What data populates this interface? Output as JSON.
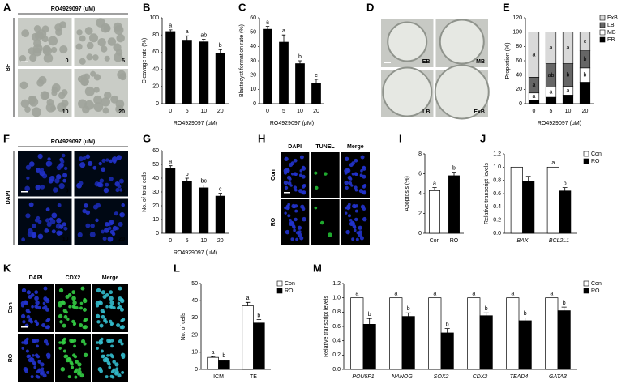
{
  "chart_data": [
    {
      "type": "bar",
      "panel": "B",
      "ylabel": "Cleavage rate (%)",
      "xlabel": "RO4929097 (μM)",
      "categories": [
        "0",
        "5",
        "10",
        "20"
      ],
      "values": [
        84,
        74,
        72,
        59
      ],
      "errors": [
        2,
        5,
        3,
        4
      ],
      "letters": [
        "a",
        "a",
        "ab",
        "b"
      ],
      "color": "#000000",
      "ylim": [
        0,
        100
      ],
      "yticks": [
        0,
        20,
        40,
        60,
        80,
        100
      ]
    },
    {
      "type": "bar",
      "panel": "C",
      "ylabel": "Blastocyst formation rate (%)",
      "xlabel": "RO4929097 (μM)",
      "categories": [
        "0",
        "5",
        "10",
        "20"
      ],
      "values": [
        52,
        43,
        28,
        14
      ],
      "errors": [
        2,
        5,
        2,
        3
      ],
      "letters": [
        "a",
        "a",
        "b",
        "c"
      ],
      "color": "#000000",
      "ylim": [
        0,
        60
      ],
      "yticks": [
        0,
        10,
        20,
        30,
        40,
        50,
        60
      ]
    },
    {
      "type": "stacked_bar",
      "panel": "E",
      "ylabel": "Proportion (%)",
      "xlabel": "RO4929097 (μM)",
      "categories": [
        "0",
        "5",
        "10",
        "20"
      ],
      "ylim": [
        0,
        120
      ],
      "yticks": [
        0,
        20,
        40,
        60,
        80,
        100,
        120
      ],
      "legend": "right",
      "series": [
        {
          "name": "EB",
          "color": "#000000",
          "values": [
            5,
            9,
            12,
            30
          ]
        },
        {
          "name": "MB",
          "color": "#ffffff",
          "values": [
            10,
            14,
            12,
            20
          ],
          "letters": [
            "a",
            "a",
            "a",
            "b"
          ]
        },
        {
          "name": "LB",
          "color": "#666666",
          "values": [
            22,
            33,
            32,
            24
          ],
          "letters": [
            "a",
            "ab",
            "b",
            "b"
          ]
        },
        {
          "name": "ExB",
          "color": "#d9d9d9",
          "values": [
            63,
            44,
            44,
            26
          ],
          "letters": [
            "a",
            "a",
            "a",
            "c"
          ]
        }
      ]
    },
    {
      "type": "bar",
      "panel": "G",
      "ylabel": "No. of total cells",
      "xlabel": "RO4929097 (μM)",
      "categories": [
        "0",
        "5",
        "10",
        "20"
      ],
      "values": [
        47,
        38,
        33,
        27
      ],
      "errors": [
        2,
        2,
        2,
        2
      ],
      "letters": [
        "a",
        "b",
        "bc",
        "c"
      ],
      "color": "#000000",
      "ylim": [
        0,
        60
      ],
      "yticks": [
        0,
        10,
        20,
        30,
        40,
        50,
        60
      ]
    },
    {
      "type": "bar",
      "panel": "I",
      "ylabel": "Apoptosis (%)",
      "categories": [
        "Con",
        "RO"
      ],
      "values": [
        4.3,
        5.8
      ],
      "errors": [
        0.3,
        0.35
      ],
      "letters": [
        "a",
        "b"
      ],
      "colors": [
        "#ffffff",
        "#000000"
      ],
      "ylim": [
        0,
        8
      ],
      "yticks": [
        0,
        2,
        4,
        6,
        8
      ]
    },
    {
      "type": "grouped_bar",
      "panel": "J",
      "ylabel": "Relative transcript levels",
      "categories": [
        "BAX",
        "BCL2L1"
      ],
      "italic_categories": true,
      "legend": "right",
      "ylim": [
        0,
        1.2
      ],
      "yticks": [
        {
          "value": 0,
          "label": "0.0"
        },
        0.2,
        0.4,
        0.6,
        0.8,
        {
          "value": 1,
          "label": "1.0"
        },
        1.2
      ],
      "series": [
        {
          "name": "Con",
          "color": "#ffffff",
          "values": [
            1,
            1
          ],
          "letters": [
            null,
            "a"
          ]
        },
        {
          "name": "RO",
          "color": "#000000",
          "values": [
            0.78,
            0.64
          ],
          "errors": [
            0.08,
            0.05
          ],
          "letters": [
            null,
            "b"
          ]
        }
      ]
    },
    {
      "type": "grouped_bar",
      "panel": "L",
      "ylabel": "No. of cells",
      "categories": [
        "ICM",
        "TE"
      ],
      "legend": "right",
      "ylim": [
        0,
        50
      ],
      "yticks": [
        0,
        10,
        20,
        30,
        40,
        50
      ],
      "series": [
        {
          "name": "Con",
          "color": "#ffffff",
          "values": [
            7,
            37
          ],
          "errors": [
            0.5,
            2
          ],
          "letters": [
            "a",
            "a"
          ]
        },
        {
          "name": "RO",
          "color": "#000000",
          "values": [
            5,
            27
          ],
          "errors": [
            0.5,
            2
          ],
          "letters": [
            "b",
            "b"
          ]
        }
      ]
    },
    {
      "type": "grouped_bar",
      "panel": "M",
      "ylabel": "Relative transcript levels",
      "categories": [
        "POU5F1",
        "NANOG",
        "SOX2",
        "CDX2",
        "TEAD4",
        "GATA3"
      ],
      "italic_categories": true,
      "legend": "right",
      "ylim": [
        0,
        1.2
      ],
      "yticks": [
        {
          "value": 0,
          "label": "0.0"
        },
        0.2,
        0.4,
        0.6,
        0.8,
        {
          "value": 1,
          "label": "1.0"
        },
        1.2
      ],
      "series": [
        {
          "name": "Con",
          "color": "#ffffff",
          "values": [
            1,
            1,
            1,
            1,
            1,
            1
          ],
          "letters": [
            "a",
            "a",
            "a",
            "a",
            "a",
            "a"
          ]
        },
        {
          "name": "RO",
          "color": "#000000",
          "values": [
            0.63,
            0.74,
            0.51,
            0.75,
            0.68,
            0.82
          ],
          "errors": [
            0.08,
            0.05,
            0.06,
            0.04,
            0.04,
            0.05
          ],
          "letters": [
            "b",
            "b",
            "b",
            "b",
            "b",
            "b"
          ]
        }
      ]
    }
  ],
  "image_panels": [
    {
      "panel": "A",
      "title": "RO4929097 (uM)",
      "side_label": "BF",
      "labels": [
        "0",
        "5",
        "10",
        "20"
      ]
    },
    {
      "panel": "D",
      "labels": [
        "EB",
        "MB",
        "LB",
        "ExB"
      ]
    },
    {
      "panel": "F",
      "title": "RO4929097 (uM)",
      "side_label": "DAPI",
      "labels": [
        "0",
        "5",
        "10",
        "20"
      ]
    },
    {
      "panel": "H",
      "columns": [
        "DAPI",
        "TUNEL",
        "Merge"
      ],
      "rows": [
        "Con",
        "RO"
      ]
    },
    {
      "panel": "K",
      "columns": [
        "DAPI",
        "CDX2",
        "Merge"
      ],
      "rows": [
        "Con",
        "RO"
      ]
    }
  ]
}
